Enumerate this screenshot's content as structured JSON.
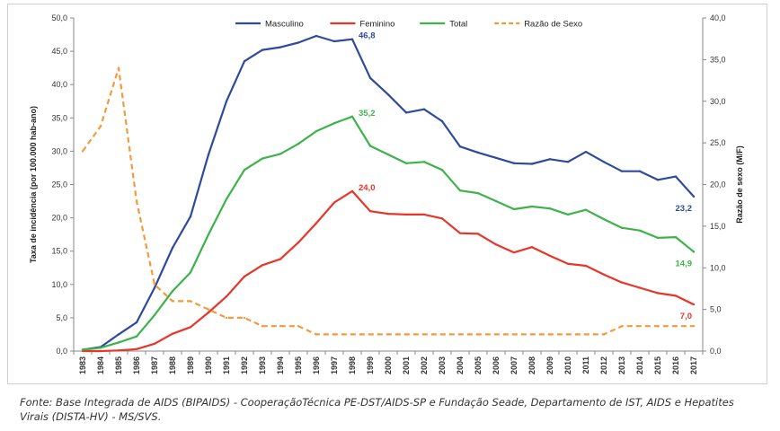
{
  "chart_data": {
    "type": "line",
    "x": [
      "1983",
      "1984",
      "1985",
      "1986",
      "1987",
      "1988",
      "1989",
      "1990",
      "1991",
      "1992",
      "1993",
      "1994",
      "1995",
      "1996",
      "1997",
      "1998",
      "1999",
      "2000",
      "2001",
      "2002",
      "2003",
      "2004",
      "2005",
      "2006",
      "2007",
      "2008",
      "2009",
      "2010",
      "2011",
      "2012",
      "2013",
      "2014",
      "2015",
      "2016",
      "2017"
    ],
    "ylabel": "Taxa de incidência (por 100.000 hab-ano)",
    "y2label": "Razão de sexo (M/F)",
    "ylim": [
      0,
      50
    ],
    "y2lim": [
      0,
      40
    ],
    "yticks": [
      "0,0",
      "5,0",
      "10,0",
      "15,0",
      "20,0",
      "25,0",
      "30,0",
      "35,0",
      "40,0",
      "45,0",
      "50,0"
    ],
    "y2ticks": [
      "0,0",
      "5,0",
      "10,0",
      "15,0",
      "20,0",
      "25,0",
      "30,0",
      "35,0",
      "40,0"
    ],
    "legend_position": "top",
    "grid": false,
    "series": [
      {
        "name": "Masculino",
        "axis": "left",
        "color": "#2e4a9e",
        "dashed": false,
        "values": [
          0.2,
          0.6,
          2.5,
          4.3,
          9.5,
          15.5,
          20.2,
          29.5,
          37.5,
          43.5,
          45.2,
          45.6,
          46.3,
          47.3,
          46.5,
          46.8,
          41.0,
          38.5,
          35.8,
          36.3,
          34.5,
          30.7,
          29.8,
          29.0,
          28.2,
          28.1,
          28.8,
          28.4,
          29.9,
          28.4,
          27.0,
          27.0,
          25.7,
          26.2,
          23.2
        ],
        "end_label": {
          "index": 34,
          "text": "23,2"
        },
        "peak_label": {
          "index": 15,
          "text": "46,8"
        }
      },
      {
        "name": "Feminino",
        "axis": "left",
        "color": "#e8352a",
        "dashed": false,
        "values": [
          0.0,
          0.0,
          0.1,
          0.3,
          1.1,
          2.6,
          3.6,
          5.8,
          8.2,
          11.2,
          12.9,
          13.8,
          16.3,
          19.2,
          22.3,
          24.0,
          21.0,
          20.6,
          20.5,
          20.5,
          19.9,
          17.7,
          17.6,
          16.0,
          14.8,
          15.6,
          14.3,
          13.1,
          12.8,
          11.5,
          10.3,
          9.5,
          8.7,
          8.3,
          7.0
        ],
        "end_label": {
          "index": 34,
          "text": "7,0"
        },
        "peak_label": {
          "index": 15,
          "text": "24,0"
        }
      },
      {
        "name": "Total",
        "axis": "left",
        "color": "#3db34a",
        "dashed": false,
        "values": [
          0.2,
          0.5,
          1.3,
          2.2,
          5.4,
          9.0,
          11.8,
          17.5,
          22.8,
          27.2,
          28.9,
          29.6,
          31.1,
          33.0,
          34.2,
          35.2,
          30.8,
          29.5,
          28.2,
          28.4,
          27.2,
          24.1,
          23.7,
          22.5,
          21.3,
          21.7,
          21.4,
          20.5,
          21.2,
          19.8,
          18.5,
          18.1,
          17.0,
          17.1,
          14.9
        ],
        "end_label": {
          "index": 34,
          "text": "14,9"
        },
        "peak_label": {
          "index": 15,
          "text": "35,2"
        }
      },
      {
        "name": "Razão de Sexo",
        "axis": "right",
        "color": "#f39a3e",
        "dashed": true,
        "values": [
          24,
          27,
          34,
          18,
          8,
          6,
          6,
          5,
          4,
          4,
          3,
          3,
          3,
          2,
          2,
          2,
          2,
          2,
          2,
          2,
          2,
          2,
          2,
          2,
          2,
          2,
          2,
          2,
          2,
          2,
          3,
          3,
          3,
          3,
          3
        ]
      }
    ]
  },
  "source_text": "Fonte: Base Integrada de AIDS (BIPAIDS) - CooperaçãoTécnica PE-DST/AIDS-SP e Fundação Seade, Departamento de IST, AIDS e Hepatites Virais (DISTA-HV) - MS/SVS."
}
